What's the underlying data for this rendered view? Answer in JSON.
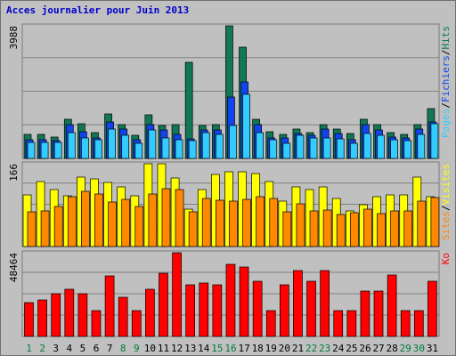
{
  "title": "Acces journalier pour Juin 2013",
  "colors": {
    "hits": "#117755",
    "files": "#1144ee",
    "pages": "#33ccff",
    "visits": "#ffff00",
    "sites": "#ff8800",
    "kbytes": "#ff0000",
    "weekend_day": "#007a3d",
    "weekday": "#000000",
    "panel_bg": "#c0c0c0",
    "grid": "#808080"
  },
  "chart_data": [
    {
      "type": "bar",
      "panel": "top",
      "ymax_label": "3988",
      "ylim": [
        0,
        3988
      ],
      "right_labels": [
        {
          "text": "Pages",
          "color": "#33ccff"
        },
        {
          "text": "Fichiers",
          "color": "#1144ee"
        },
        {
          "text": "Hits",
          "color": "#117755"
        }
      ],
      "categories": [
        "1",
        "2",
        "3",
        "4",
        "5",
        "6",
        "7",
        "8",
        "9",
        "10",
        "11",
        "12",
        "13",
        "14",
        "15",
        "16",
        "17",
        "18",
        "19",
        "20",
        "21",
        "22",
        "23",
        "24",
        "25",
        "26",
        "27",
        "28",
        "29",
        "30",
        "31"
      ],
      "weekend": [
        1,
        2,
        8,
        9,
        15,
        16,
        22,
        23,
        29,
        30
      ],
      "series": [
        {
          "name": "Hits",
          "values": [
            717,
            717,
            651,
            1173,
            1043,
            782,
            1336,
            1010,
            684,
            1303,
            994,
            1010,
            2901,
            978,
            1010,
            3988,
            3356,
            1173,
            815,
            717,
            880,
            782,
            1010,
            880,
            749,
            1173,
            1010,
            782,
            717,
            1010,
            1499
          ]
        },
        {
          "name": "Fichiers",
          "values": [
            554,
            554,
            522,
            1010,
            815,
            619,
            1108,
            880,
            554,
            1010,
            847,
            717,
            586,
            847,
            847,
            1858,
            2314,
            1010,
            619,
            619,
            749,
            684,
            880,
            749,
            554,
            1010,
            847,
            651,
            619,
            880,
            1108
          ]
        },
        {
          "name": "Pages",
          "values": [
            489,
            489,
            489,
            782,
            619,
            554,
            880,
            684,
            456,
            847,
            619,
            554,
            522,
            782,
            717,
            978,
            1923,
            782,
            554,
            456,
            684,
            619,
            619,
            586,
            456,
            749,
            684,
            554,
            522,
            717,
            1043
          ]
        }
      ]
    },
    {
      "type": "bar",
      "panel": "middle",
      "ymax_label": "166",
      "ylim": [
        0,
        166
      ],
      "right_labels": [
        {
          "text": "Sites",
          "color": "#ff8800"
        },
        {
          "text": "Visites",
          "color": "#ffff00"
        }
      ],
      "categories": [
        "1",
        "2",
        "3",
        "4",
        "5",
        "6",
        "7",
        "8",
        "9",
        "10",
        "11",
        "12",
        "13",
        "14",
        "15",
        "16",
        "17",
        "18",
        "19",
        "20",
        "21",
        "22",
        "23",
        "24",
        "25",
        "26",
        "27",
        "28",
        "29",
        "30",
        "31"
      ],
      "series": [
        {
          "name": "Visites",
          "values": [
            104,
            131,
            115,
            101,
            140,
            135,
            128,
            120,
            102,
            166,
            166,
            138,
            75,
            115,
            145,
            150,
            150,
            147,
            131,
            91,
            119,
            114,
            119,
            97,
            71,
            84,
            100,
            104,
            104,
            140,
            100
          ]
        },
        {
          "name": "Sites",
          "values": [
            69,
            71,
            81,
            100,
            110,
            105,
            89,
            95,
            81,
            105,
            116,
            114,
            69,
            97,
            93,
            91,
            95,
            100,
            97,
            69,
            86,
            71,
            73,
            65,
            68,
            75,
            66,
            71,
            71,
            91,
            99
          ]
        }
      ]
    },
    {
      "type": "bar",
      "panel": "bottom",
      "ymax_label": "48464",
      "ylim": [
        0,
        48464
      ],
      "right_labels": [
        {
          "text": "Ko",
          "color": "#ff0000"
        }
      ],
      "categories": [
        "1",
        "2",
        "3",
        "4",
        "5",
        "6",
        "7",
        "8",
        "9",
        "10",
        "11",
        "12",
        "13",
        "14",
        "15",
        "16",
        "17",
        "18",
        "19",
        "20",
        "21",
        "22",
        "23",
        "24",
        "25",
        "26",
        "27",
        "28",
        "29",
        "30",
        "31"
      ],
      "series": [
        {
          "name": "Ko",
          "values": [
            19840,
            21380,
            24490,
            27070,
            24490,
            15200,
            34810,
            22930,
            15200,
            27070,
            36360,
            48464,
            29650,
            30680,
            29650,
            41510,
            39960,
            32220,
            15200,
            29650,
            37910,
            32220,
            37910,
            15200,
            15200,
            26040,
            26040,
            35330,
            15200,
            15200,
            32220
          ]
        }
      ]
    }
  ]
}
